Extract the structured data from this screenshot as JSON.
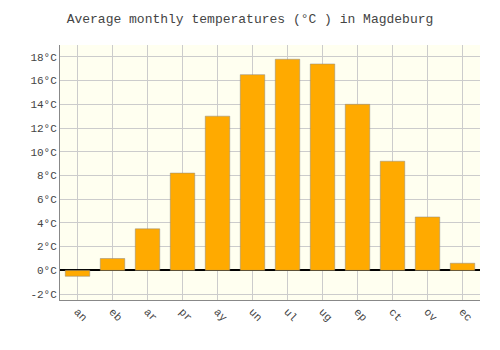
{
  "chart_data": {
    "type": "bar",
    "title": "Average monthly temperatures (°C ) in Magdeburg",
    "categories": [
      "an",
      "eb",
      "ar",
      "pr",
      "ay",
      "un",
      "ul",
      "ug",
      "ep",
      "ct",
      "ov",
      "ec"
    ],
    "values": [
      -0.5,
      1.0,
      3.5,
      8.2,
      13.0,
      16.5,
      17.8,
      17.4,
      14.0,
      9.2,
      4.5,
      0.6
    ],
    "color": "#FFAA00",
    "ylim": [
      -2.5,
      19.0
    ],
    "yticks": [
      {
        "value": -2,
        "label": "-2°C"
      },
      {
        "value": 0,
        "label": "0°C"
      },
      {
        "value": 2,
        "label": "2°C"
      },
      {
        "value": 4,
        "label": "4°C"
      },
      {
        "value": 6,
        "label": "6°C"
      },
      {
        "value": 8,
        "label": "8°C"
      },
      {
        "value": 10,
        "label": "10°C"
      },
      {
        "value": 12,
        "label": "12°C"
      },
      {
        "value": 14,
        "label": "14°C"
      },
      {
        "value": 16,
        "label": "16°C"
      },
      {
        "value": 18,
        "label": "18°C"
      }
    ],
    "grid": true
  }
}
